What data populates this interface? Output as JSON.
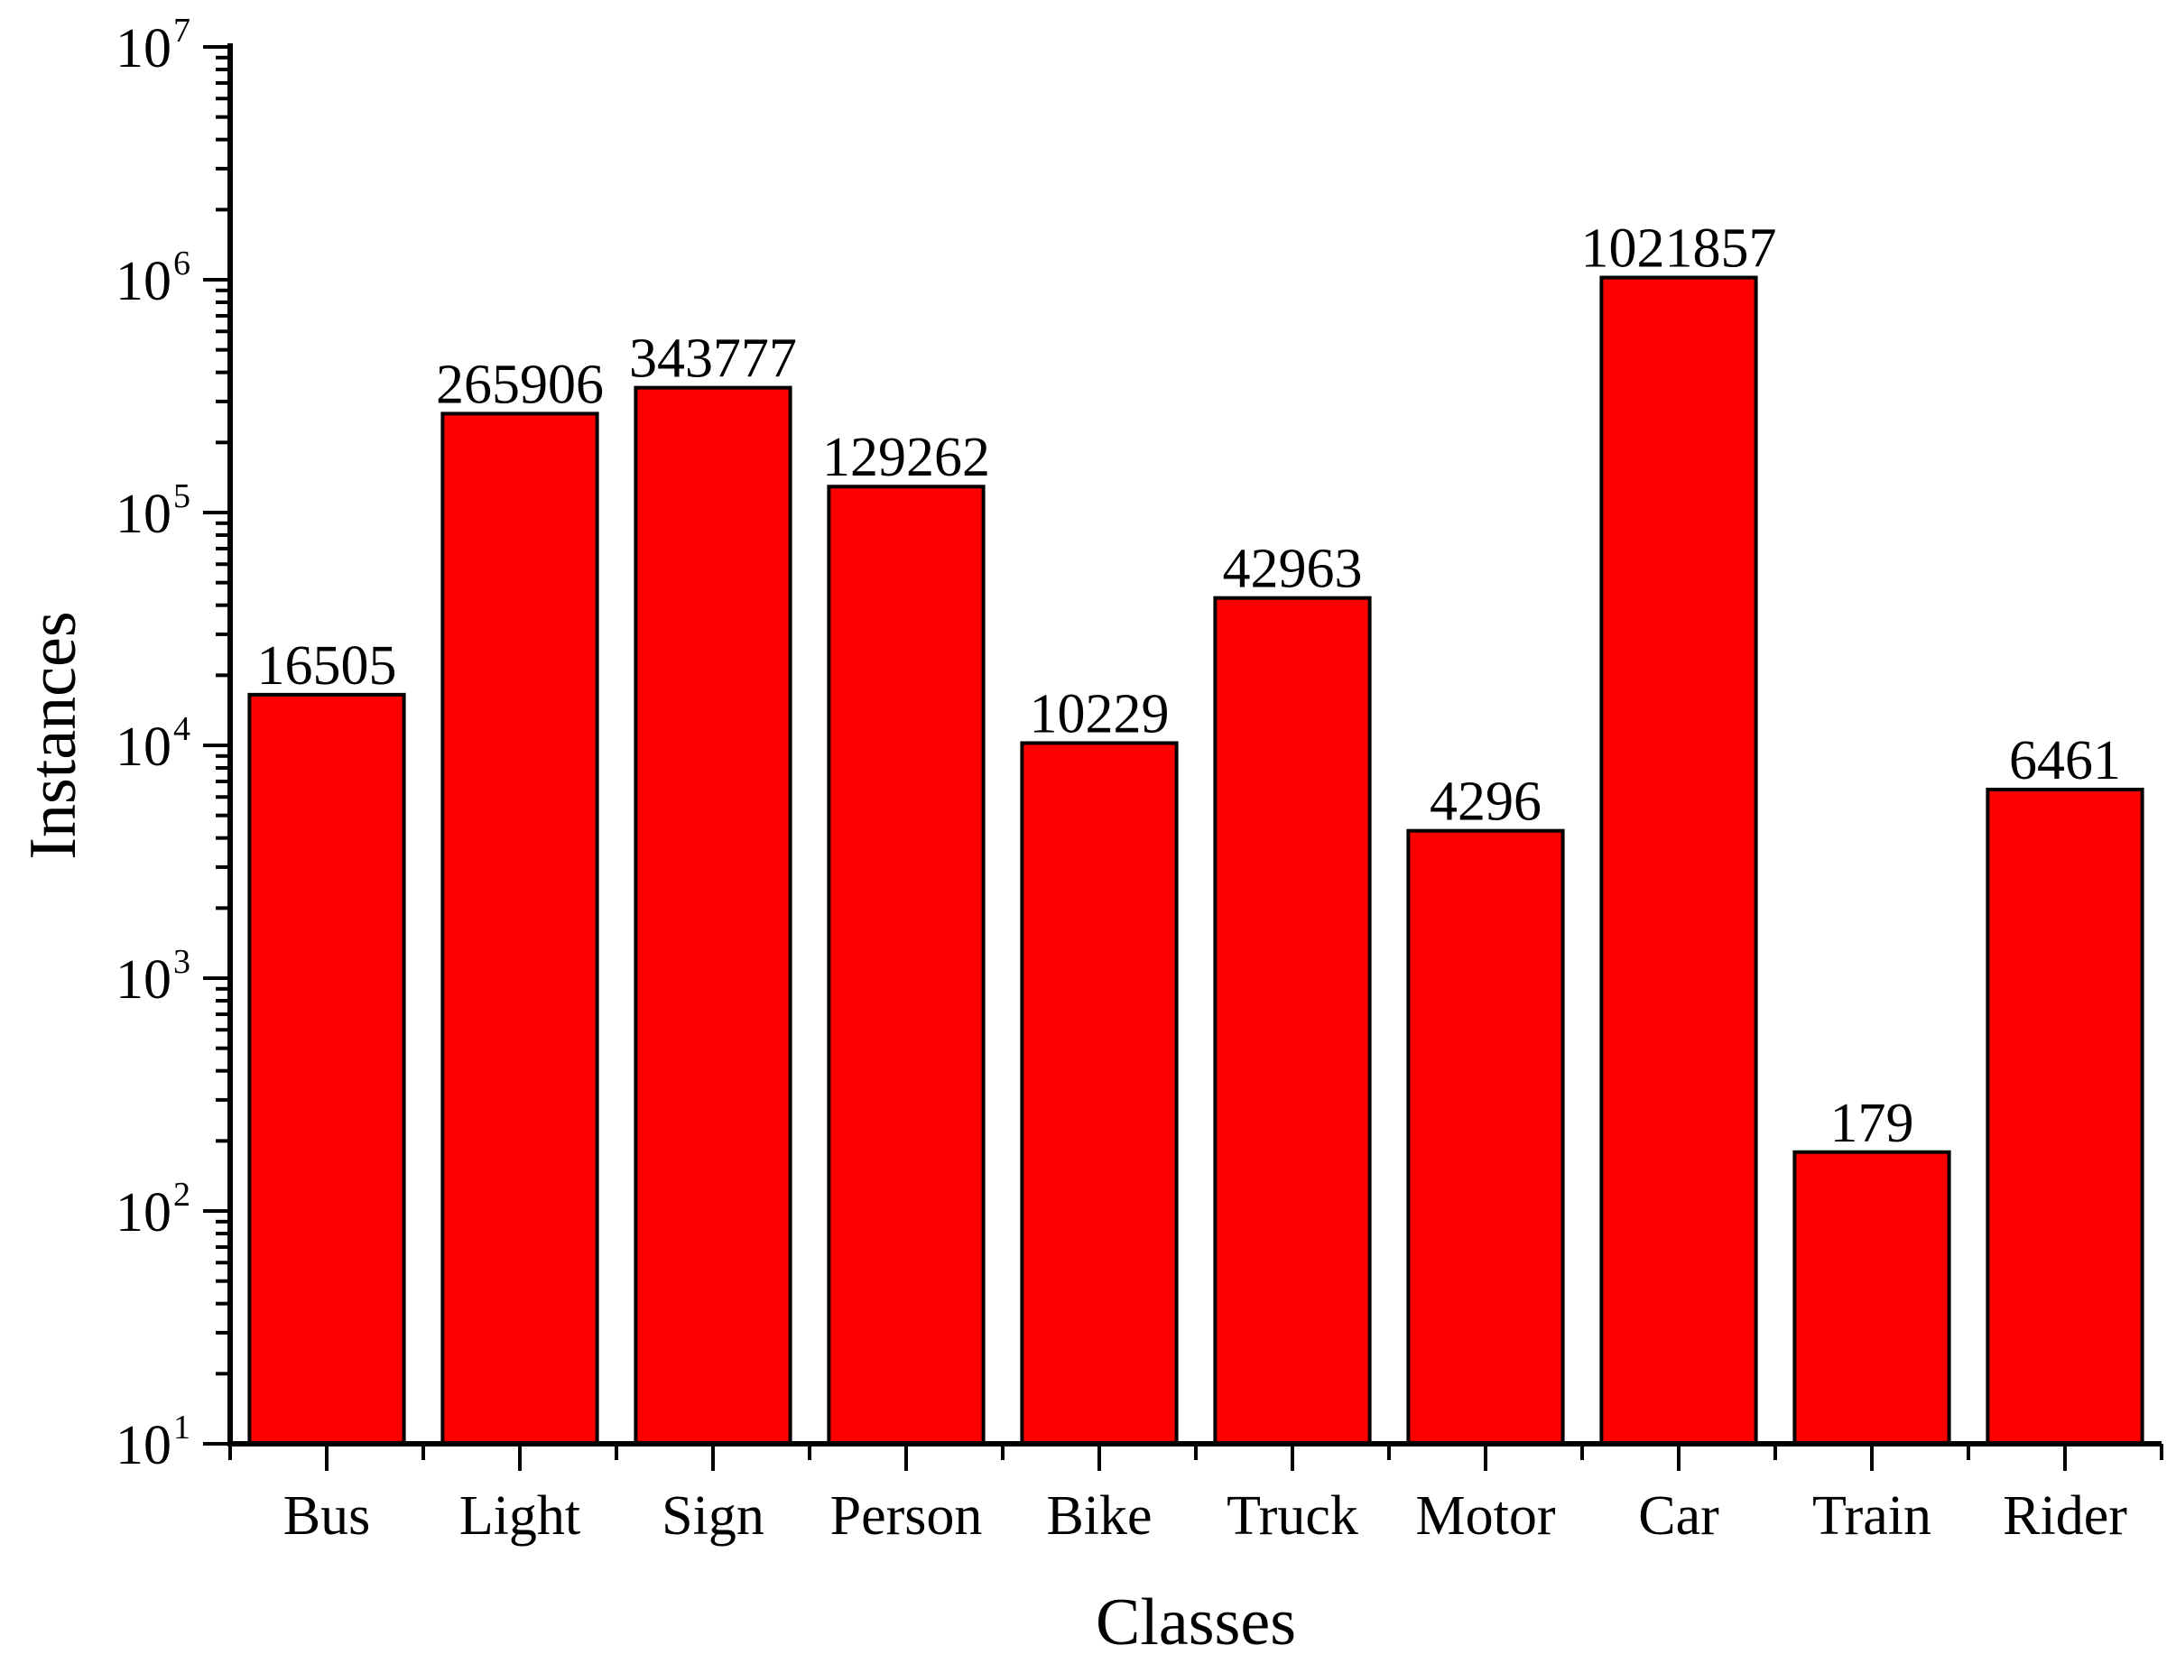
{
  "chart_data": {
    "type": "bar",
    "title": "",
    "xlabel": "Classes",
    "ylabel": "Instances",
    "yscale": "log",
    "ylim": [
      10,
      10000000
    ],
    "grid": false,
    "legend": "none",
    "bar_color": "#ff0000",
    "categories": [
      "Bus",
      "Light",
      "Sign",
      "Person",
      "Bike",
      "Truck",
      "Motor",
      "Car",
      "Train",
      "Rider"
    ],
    "values": [
      16505,
      265906,
      343777,
      129262,
      10229,
      42963,
      4296,
      1021857,
      179,
      6461
    ],
    "value_labels": [
      "16505",
      "265906",
      "343777",
      "129262",
      "10229",
      "42963",
      "4296",
      "1021857",
      "179",
      "6461"
    ],
    "y_ticks": [
      {
        "base": "10",
        "exp": "1"
      },
      {
        "base": "10",
        "exp": "2"
      },
      {
        "base": "10",
        "exp": "3"
      },
      {
        "base": "10",
        "exp": "4"
      },
      {
        "base": "10",
        "exp": "5"
      },
      {
        "base": "10",
        "exp": "6"
      },
      {
        "base": "10",
        "exp": "7"
      }
    ]
  }
}
